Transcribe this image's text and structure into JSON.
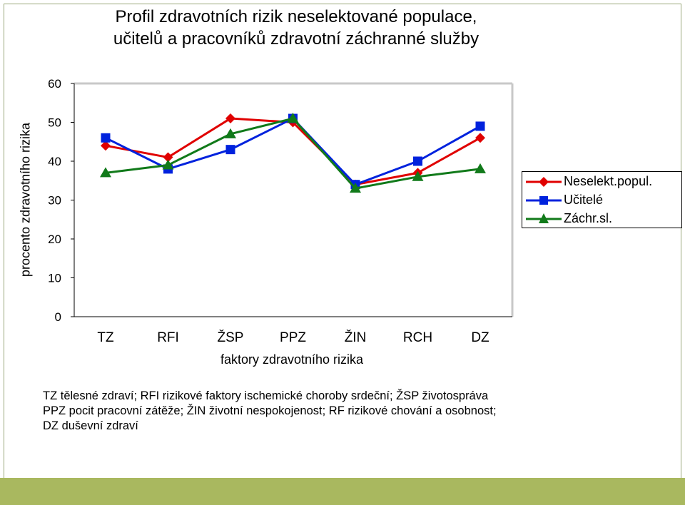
{
  "title_lines": [
    "Profil zdravotních rizik neselektované populace,",
    "učitelů a pracovníků zdravotní záchranné služby"
  ],
  "colors": {
    "series": [
      "#e00000",
      "#0022dd",
      "#117a1a"
    ],
    "bottom_band": "#a9b85f"
  },
  "chart_data": {
    "type": "line",
    "title": "Profil zdravotních rizik neselektované populace, učitelů a pracovníků zdravotní záchranné služby",
    "xlabel": "faktory zdravotního rizika",
    "ylabel": "procento zdravotního rizika",
    "categories": [
      "TZ",
      "RFI",
      "ŽSP",
      "PPZ",
      "ŽIN",
      "RCH",
      "DZ"
    ],
    "ylim": [
      0,
      60
    ],
    "yticks": [
      0,
      10,
      20,
      30,
      40,
      50,
      60
    ],
    "grid": false,
    "legend_position": "right",
    "series": [
      {
        "name": "Neselekt.popul.",
        "marker": "diamond",
        "values": [
          44,
          41,
          51,
          50,
          34,
          37,
          46
        ]
      },
      {
        "name": "Učitelé",
        "marker": "square",
        "values": [
          46,
          38,
          43,
          51,
          34,
          40,
          49
        ]
      },
      {
        "name": "Záchr.sl.",
        "marker": "triangle",
        "values": [
          37,
          39,
          47,
          51,
          33,
          36,
          38
        ]
      }
    ]
  },
  "notes": [
    "TZ  tělesné zdraví;  RFI  rizikové faktory ischemické choroby srdeční;  ŽSP  životospráva",
    "PPZ  pocit pracovní zátěže;  ŽIN  životní nespokojenost;  RF  rizikové chování a osobnost;",
    "DZ  duševní zdraví"
  ]
}
